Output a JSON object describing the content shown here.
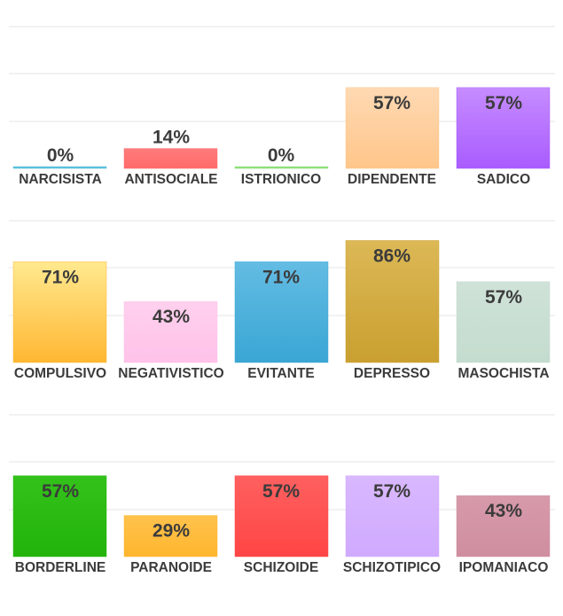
{
  "chart_data": [
    {
      "type": "bar",
      "categories": [
        "NARCISISTA",
        "ANTISOCIALE",
        "ISTRIONICO",
        "DIPENDENTE",
        "SADICO"
      ],
      "values": [
        0,
        14,
        0,
        57,
        57
      ],
      "value_labels": [
        "0%",
        "14%",
        "0%",
        "57%",
        "57%"
      ],
      "colors": [
        {
          "top": "#5bc0de",
          "bottom": "#5bc0de"
        },
        {
          "top": "#ff7b7b",
          "bottom": "#ff6a6a"
        },
        {
          "top": "#8fe07a",
          "bottom": "#8fe07a"
        },
        {
          "top": "#ffd9b3",
          "bottom": "#ffc68a"
        },
        {
          "top": "#c68cff",
          "bottom": "#a95cff"
        }
      ],
      "ylim": [
        0,
        100
      ],
      "grid": true
    },
    {
      "type": "bar",
      "categories": [
        "COMPULSIVO",
        "NEGATIVISTICO",
        "EVITANTE",
        "DEPRESSO",
        "MASOCHISTA"
      ],
      "values": [
        71,
        43,
        71,
        86,
        57
      ],
      "value_labels": [
        "71%",
        "43%",
        "71%",
        "86%",
        "57%"
      ],
      "colors": [
        {
          "top": "#ffe98f",
          "bottom": "#ffb733"
        },
        {
          "top": "#ffd0ee",
          "bottom": "#ffc2e9"
        },
        {
          "top": "#63bce3",
          "bottom": "#3aa6d4"
        },
        {
          "top": "#dcb856",
          "bottom": "#c9a030"
        },
        {
          "top": "#cfe2d8",
          "bottom": "#c4dccf"
        }
      ],
      "ylim": [
        0,
        100
      ],
      "grid": true
    },
    {
      "type": "bar",
      "categories": [
        "BORDERLINE",
        "PARANOIDE",
        "SCHIZOIDE",
        "SCHIZOTIPICO",
        "IPOMANIACO"
      ],
      "values": [
        57,
        29,
        57,
        57,
        43
      ],
      "value_labels": [
        "57%",
        "29%",
        "57%",
        "57%",
        "43%"
      ],
      "colors": [
        {
          "top": "#33c21a",
          "bottom": "#22b40a"
        },
        {
          "top": "#ffc24d",
          "bottom": "#ffb62e"
        },
        {
          "top": "#ff6060",
          "bottom": "#ff4545"
        },
        {
          "top": "#d9b8ff",
          "bottom": "#d0aaff"
        },
        {
          "top": "#d79aaa",
          "bottom": "#cf8ea0"
        }
      ],
      "ylim": [
        0,
        100
      ],
      "grid": true
    }
  ]
}
